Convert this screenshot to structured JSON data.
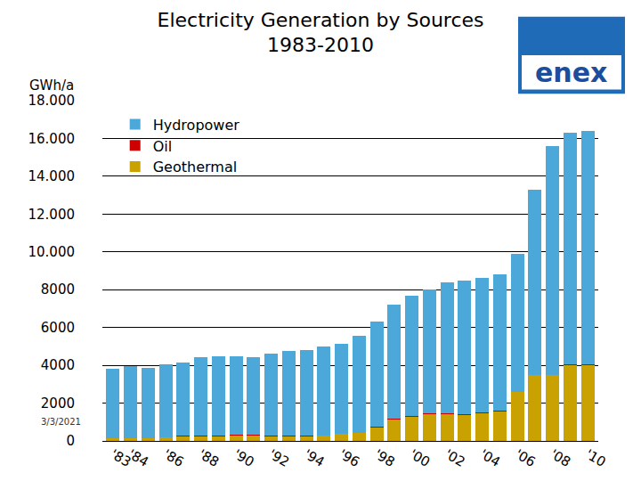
{
  "chart_data": {
    "type": "bar",
    "title": "Electricity Generation by Sources\n1983-2010",
    "y_label": "GWh/a",
    "annotations": [
      "enex",
      "3/3/2021"
    ],
    "categories": [
      "'83",
      "'84",
      null,
      "'86",
      null,
      "'88",
      null,
      "'90",
      null,
      "'92",
      null,
      "'94",
      null,
      "'96",
      null,
      "'98",
      null,
      "'00",
      null,
      "'02",
      null,
      "'04",
      null,
      "'06",
      null,
      "'08",
      null,
      "'10"
    ],
    "series": [
      {
        "name": "Geothermal",
        "color": "#c9a100",
        "values": [
          150,
          150,
          150,
          200,
          250,
          250,
          250,
          300,
          300,
          270,
          270,
          280,
          290,
          380,
          430,
          750,
          1150,
          1300,
          1450,
          1430,
          1410,
          1480,
          1600,
          2600,
          3500,
          3500,
          4040,
          4050
        ]
      },
      {
        "name": "Oil",
        "color": "#cc0000",
        "values": [
          15,
          10,
          10,
          10,
          10,
          10,
          10,
          40,
          40,
          10,
          10,
          10,
          15,
          10,
          5,
          5,
          5,
          10,
          10,
          10,
          10,
          10,
          10,
          10,
          5,
          5,
          5,
          5
        ]
      },
      {
        "name": "Hydropower",
        "color": "#4ba8d9",
        "values": [
          3635,
          3790,
          3690,
          3840,
          3890,
          4190,
          4240,
          4160,
          4110,
          4320,
          4470,
          4510,
          4675,
          4730,
          5145,
          5545,
          6045,
          6390,
          6540,
          6960,
          7080,
          7110,
          7190,
          7290,
          9795,
          12095,
          12255,
          12345
        ]
      }
    ],
    "ylim": [
      0,
      18000
    ],
    "yticks": [
      0,
      2000,
      4000,
      6000,
      8000,
      {
        "value": 10000,
        "label": "10.000"
      },
      {
        "value": 12000,
        "label": "12.000"
      },
      {
        "value": 14000,
        "label": "14.000"
      },
      {
        "value": 16000,
        "label": "16.000"
      },
      {
        "value": 18000,
        "label": "18.000"
      }
    ],
    "stacked": true,
    "grid": true,
    "legend": "upper left"
  }
}
